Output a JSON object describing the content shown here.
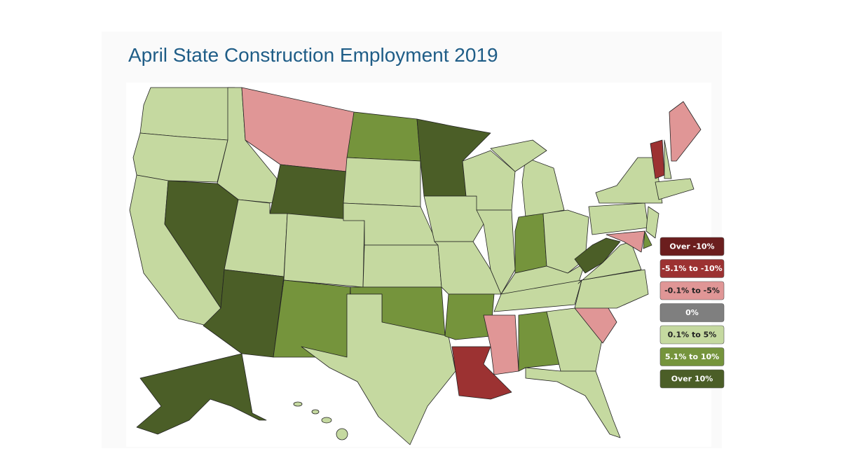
{
  "title": "April State Construction Employment 2019",
  "legend": {
    "items": [
      {
        "label": "Over -10%",
        "color": "#6b1e1e"
      },
      {
        "label": "-5.1% to -10%",
        "color": "#9c3232"
      },
      {
        "label": "-0.1% to -5%",
        "color": "#e09696"
      },
      {
        "label": "0%",
        "color": "#7f7f7f"
      },
      {
        "label": "0.1% to 5%",
        "color": "#c5d9a0"
      },
      {
        "label": "5.1% to 10%",
        "color": "#75943c"
      },
      {
        "label": "Over 10%",
        "color": "#4b5e27"
      }
    ]
  }
}
